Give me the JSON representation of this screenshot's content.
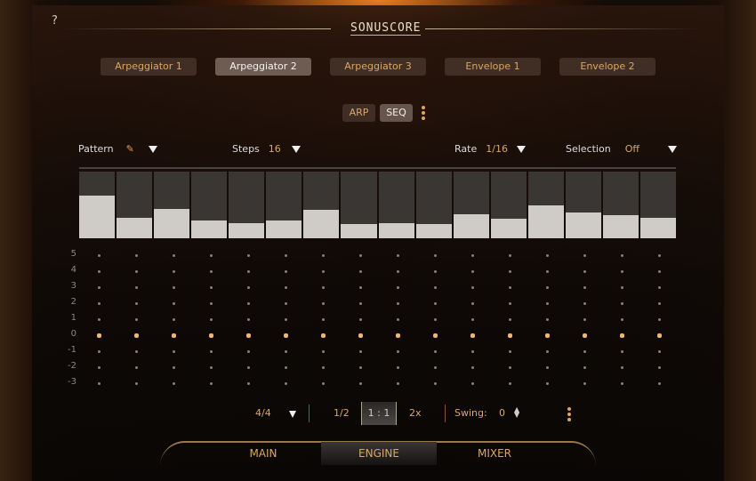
{
  "header": {
    "help": "?",
    "logo": "SONUSCORE"
  },
  "tabs": [
    {
      "label": "Arpeggiator 1",
      "active": false
    },
    {
      "label": "Arpeggiator 2",
      "active": true
    },
    {
      "label": "Arpeggiator 3",
      "active": false
    },
    {
      "label": "Envelope 1",
      "active": false
    },
    {
      "label": "Envelope 2",
      "active": false
    }
  ],
  "modes": {
    "arp": "ARP",
    "seq": "SEQ",
    "active": "SEQ"
  },
  "controls": {
    "pattern_label": "Pattern",
    "steps_label": "Steps",
    "steps_value": "16",
    "rate_label": "Rate",
    "rate_value": "1/16",
    "selection_label": "Selection",
    "selection_value": "Off"
  },
  "step_values": [
    0.64,
    0.31,
    0.44,
    0.27,
    0.23,
    0.27,
    0.43,
    0.21,
    0.23,
    0.21,
    0.36,
    0.29,
    0.49,
    0.39,
    0.35,
    0.31
  ],
  "grid_rows": [
    "5",
    "4",
    "3",
    "2",
    "1",
    "0",
    "-1",
    "-2",
    "-3"
  ],
  "grid_active_row": "0",
  "bottom": {
    "time_sig": "4/4",
    "half": "1/2",
    "normal": "1 : 1",
    "double": "2x",
    "swing_label": "Swing:",
    "swing_value": "0"
  },
  "nav": {
    "main": "MAIN",
    "engine": "ENGINE",
    "mixer": "MIXER",
    "active": "ENGINE"
  },
  "colors": {
    "accent": "#d9a766",
    "active_dot": "#f0b66a"
  }
}
